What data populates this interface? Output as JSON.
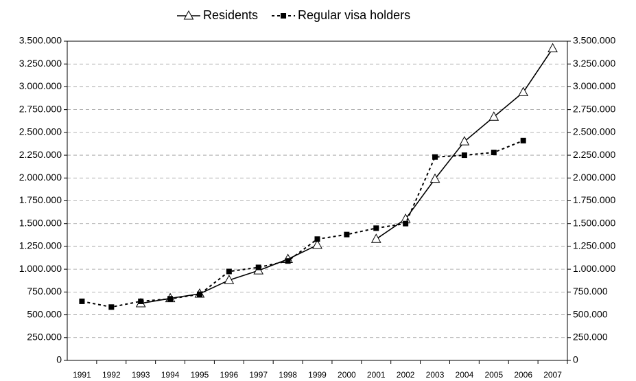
{
  "chart_data": {
    "type": "line",
    "categories": [
      "1991",
      "1992",
      "1993",
      "1994",
      "1995",
      "1996",
      "1997",
      "1998",
      "1999",
      "2000",
      "2001",
      "2002",
      "2003",
      "2004",
      "2005",
      "2006",
      "2007"
    ],
    "series": [
      {
        "name": "Residents",
        "color": "#000000",
        "line_style": "solid",
        "marker": "triangle",
        "values": [
          null,
          null,
          625000,
          680000,
          730000,
          880000,
          985000,
          1110000,
          1265000,
          null,
          1330000,
          1550000,
          1990000,
          2400000,
          2670000,
          2940000,
          3420000
        ]
      },
      {
        "name": "Regular visa holders",
        "color": "#000000",
        "line_style": "dashed",
        "marker": "square",
        "values": [
          648000,
          585000,
          648000,
          675000,
          725000,
          975000,
          1020000,
          1090000,
          1330000,
          1380000,
          1450000,
          1500000,
          2230000,
          2250000,
          2280000,
          2410000,
          null
        ]
      }
    ],
    "ylim": [
      0,
      3500000
    ],
    "yticks": [
      0,
      {
        "value": 250000,
        "label": "250.000"
      },
      {
        "value": 500000,
        "label": "500.000"
      },
      {
        "value": 750000,
        "label": "750.000"
      },
      {
        "value": 1000000,
        "label": "1.000.000"
      },
      {
        "value": 1250000,
        "label": "1.250.000"
      },
      {
        "value": 1500000,
        "label": "1.500.000"
      },
      {
        "value": 1750000,
        "label": "1.750.000"
      },
      {
        "value": 2000000,
        "label": "2.000.000"
      },
      {
        "value": 2250000,
        "label": "2.250.000"
      },
      {
        "value": 2500000,
        "label": "2.500.000"
      },
      {
        "value": 2750000,
        "label": "2.750.000"
      },
      {
        "value": 3000000,
        "label": "3.000.000"
      },
      {
        "value": 3250000,
        "label": "3.250.000"
      },
      {
        "value": 3500000,
        "label": "3.500.000"
      }
    ],
    "y2lim": [
      0,
      3500000
    ],
    "y2ticks": [
      0,
      {
        "value": 250000,
        "label": "250.000"
      },
      {
        "value": 500000,
        "label": "500.000"
      },
      {
        "value": 750000,
        "label": "750.000"
      },
      {
        "value": 1000000,
        "label": "1.000.000"
      },
      {
        "value": 1250000,
        "label": "1.250.000"
      },
      {
        "value": 1500000,
        "label": "1.500.000"
      },
      {
        "value": 1750000,
        "label": "1.750.000"
      },
      {
        "value": 2000000,
        "label": "2.000.000"
      },
      {
        "value": 2250000,
        "label": "2.250.000"
      },
      {
        "value": 2500000,
        "label": "2.500.000"
      },
      {
        "value": 2750000,
        "label": "2.750.000"
      },
      {
        "value": 3000000,
        "label": "3.000.000"
      },
      {
        "value": 3250000,
        "label": "3.250.000"
      },
      {
        "value": 3500000,
        "label": "3.500.000"
      }
    ],
    "grid": true,
    "legend": "top"
  }
}
